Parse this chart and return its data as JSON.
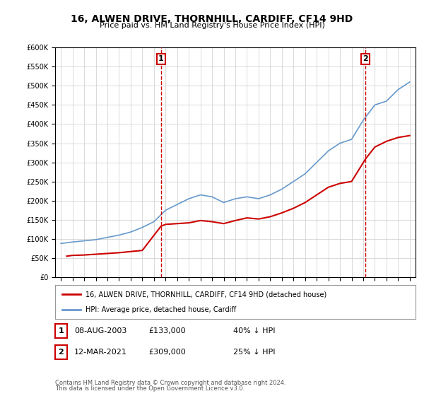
{
  "title": "16, ALWEN DRIVE, THORNHILL, CARDIFF, CF14 9HD",
  "subtitle": "Price paid vs. HM Land Registry's House Price Index (HPI)",
  "legend_line1": "16, ALWEN DRIVE, THORNHILL, CARDIFF, CF14 9HD (detached house)",
  "legend_line2": "HPI: Average price, detached house, Cardiff",
  "sale1_label": "1",
  "sale1_date": "08-AUG-2003",
  "sale1_price": "£133,000",
  "sale1_hpi": "40% ↓ HPI",
  "sale1_year": 2003.6,
  "sale1_value": 133000,
  "sale2_label": "2",
  "sale2_date": "12-MAR-2021",
  "sale2_price": "£309,000",
  "sale2_hpi": "25% ↓ HPI",
  "sale2_year": 2021.2,
  "sale2_value": 309000,
  "footnote1": "Contains HM Land Registry data © Crown copyright and database right 2024.",
  "footnote2": "This data is licensed under the Open Government Licence v3.0.",
  "red_color": "#cc0000",
  "blue_color": "#6699cc",
  "dashed_color": "#cc0000",
  "background_color": "#ffffff",
  "grid_color": "#cccccc",
  "ylim": [
    0,
    600000
  ],
  "yticks": [
    0,
    50000,
    100000,
    150000,
    200000,
    250000,
    300000,
    350000,
    400000,
    450000,
    500000,
    550000,
    600000
  ],
  "hpi_years": [
    1995,
    1996,
    1997,
    1998,
    1999,
    2000,
    2001,
    2002,
    2003,
    2004,
    2005,
    2006,
    2007,
    2008,
    2009,
    2010,
    2011,
    2012,
    2013,
    2014,
    2015,
    2016,
    2017,
    2018,
    2019,
    2020,
    2021,
    2022,
    2023,
    2024,
    2025
  ],
  "hpi_values": [
    88000,
    92000,
    95000,
    98000,
    104000,
    110000,
    118000,
    130000,
    145000,
    175000,
    190000,
    205000,
    215000,
    210000,
    195000,
    205000,
    210000,
    205000,
    215000,
    230000,
    250000,
    270000,
    300000,
    330000,
    350000,
    360000,
    410000,
    450000,
    460000,
    490000,
    510000
  ],
  "prop_years": [
    1995.5,
    1996,
    1997,
    1998,
    1999,
    2000,
    2001,
    2002,
    2003.6,
    2004,
    2005,
    2006,
    2007,
    2008,
    2009,
    2010,
    2011,
    2012,
    2013,
    2014,
    2015,
    2016,
    2017,
    2018,
    2019,
    2020,
    2021.2,
    2022,
    2023,
    2024,
    2025
  ],
  "prop_values": [
    55000,
    57000,
    58000,
    60000,
    62000,
    64000,
    67000,
    70000,
    133000,
    138000,
    140000,
    142000,
    148000,
    145000,
    140000,
    148000,
    155000,
    152000,
    158000,
    168000,
    180000,
    195000,
    215000,
    235000,
    245000,
    250000,
    309000,
    340000,
    355000,
    365000,
    370000
  ]
}
